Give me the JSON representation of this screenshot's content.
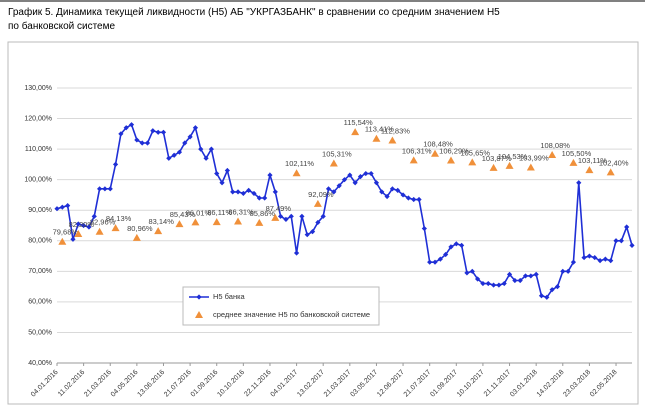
{
  "chart_data": {
    "type": "line",
    "title": "График 5. Динамика текущей ликвидности (Н5) АБ \"УКРГАЗБАНК\" в сравнении со средним значением Н5 по банковской системе",
    "categories": [
      "04.01.2016",
      null,
      null,
      null,
      null,
      "11.02.2016",
      null,
      null,
      null,
      null,
      "21.03.2016",
      null,
      null,
      null,
      null,
      "04.05.2016",
      null,
      null,
      null,
      null,
      "13.06.2016",
      null,
      null,
      null,
      null,
      "21.07.2016",
      null,
      null,
      null,
      null,
      "01.09.2016",
      null,
      null,
      null,
      null,
      "10.10.2016",
      null,
      null,
      null,
      null,
      "22.11.2016",
      null,
      null,
      null,
      null,
      "04.01.2017",
      null,
      null,
      null,
      null,
      "13.02.2017",
      null,
      null,
      null,
      null,
      "21.03.2017",
      null,
      null,
      null,
      null,
      "03.05.2017",
      null,
      null,
      null,
      null,
      "12.06.2017",
      null,
      null,
      null,
      null,
      "21.07.2017",
      null,
      null,
      null,
      null,
      "01.09.2017",
      null,
      null,
      null,
      null,
      "10.10.2017",
      null,
      null,
      null,
      null,
      "21.11.2017",
      null,
      null,
      null,
      null,
      "03.01.2018",
      null,
      null,
      null,
      null,
      "14.02.2018",
      null,
      null,
      null,
      null,
      "23.03.2018",
      null,
      null,
      null,
      null,
      "02.05.2018",
      null,
      null,
      null
    ],
    "series": [
      {
        "name": "Н5 банка",
        "color": "#1f2fd6",
        "marker": "diamond",
        "line": true,
        "values": [
          90.5,
          91,
          91.5,
          80.5,
          85.5,
          85,
          84.5,
          88,
          97,
          97,
          97,
          105,
          115,
          117,
          118,
          113,
          112,
          112,
          116,
          115.5,
          115.5,
          107,
          108,
          109,
          112,
          114,
          117,
          110,
          107,
          110,
          102,
          99,
          103,
          96,
          96,
          95.5,
          96.5,
          95.5,
          94,
          94,
          101.5,
          96,
          88,
          87,
          88,
          76,
          88,
          82,
          83,
          86,
          88,
          97,
          96,
          98,
          100,
          101.5,
          99,
          101,
          102,
          102,
          99,
          96,
          94.5,
          97,
          96.5,
          95,
          94,
          93.5,
          93.5,
          84,
          73,
          73,
          74,
          75.5,
          78,
          79,
          78.5,
          69.5,
          70,
          67.5,
          66,
          66,
          65.5,
          65.5,
          66,
          69,
          67,
          67,
          68.5,
          68.5,
          69,
          62,
          61.5,
          64,
          65,
          70,
          70,
          73,
          99,
          74.5,
          75,
          74.5,
          73.5,
          74,
          73.5,
          80,
          80,
          84.5,
          78.5
        ]
      },
      {
        "name": "среднее значение Н5 по банковской системе",
        "color": "#f0903a",
        "marker": "triangle",
        "line": false,
        "values": [
          null,
          79.68,
          null,
          null,
          82.2,
          null,
          null,
          null,
          82.96,
          null,
          null,
          84.13,
          null,
          null,
          null,
          80.96,
          null,
          null,
          null,
          83.14,
          null,
          null,
          null,
          85.43,
          null,
          null,
          86.01,
          null,
          null,
          null,
          86.11,
          null,
          null,
          null,
          86.31,
          null,
          null,
          null,
          85.86,
          null,
          null,
          87.49,
          null,
          null,
          null,
          102.11,
          null,
          null,
          null,
          92.09,
          null,
          null,
          105.31,
          null,
          null,
          null,
          115.54,
          null,
          null,
          null,
          113.41,
          null,
          null,
          112.83,
          null,
          null,
          null,
          106.31,
          null,
          null,
          null,
          108.48,
          null,
          null,
          106.29,
          null,
          null,
          null,
          105.65,
          null,
          null,
          null,
          103.87,
          null,
          null,
          104.53,
          null,
          null,
          null,
          103.99,
          null,
          null,
          null,
          108.08,
          null,
          null,
          null,
          105.5,
          null,
          null,
          103.11,
          null,
          null,
          null,
          102.4,
          null,
          null,
          null,
          null
        ],
        "value_labels": [
          null,
          "79,68%",
          null,
          null,
          "82,20%",
          null,
          null,
          null,
          "82,96%",
          null,
          null,
          "84,13%",
          null,
          null,
          null,
          "80,96%",
          null,
          null,
          null,
          "83,14%",
          null,
          null,
          null,
          "85,43%",
          null,
          null,
          "86,01%",
          null,
          null,
          null,
          "86,11%",
          null,
          null,
          null,
          "86,31%",
          null,
          null,
          null,
          "85,86%",
          null,
          null,
          "87,49%",
          null,
          null,
          null,
          "102,11%",
          null,
          null,
          null,
          "92,09%",
          null,
          null,
          "105,31%",
          null,
          null,
          null,
          "115,54%",
          null,
          null,
          null,
          "113,41%",
          null,
          null,
          "112,83%",
          null,
          null,
          null,
          "106,31%",
          null,
          null,
          null,
          "108,48%",
          null,
          null,
          "106,29%",
          null,
          null,
          null,
          "105,65%",
          null,
          null,
          null,
          "103,87%",
          null,
          null,
          "104,53%",
          null,
          null,
          null,
          "103,99%",
          null,
          null,
          null,
          "108,08%",
          null,
          null,
          null,
          "105,50%",
          null,
          null,
          "103,11%",
          null,
          null,
          null,
          "102,40%",
          null,
          null,
          null,
          null
        ]
      }
    ],
    "ylim": [
      40,
      130
    ],
    "yticks": [
      {
        "value": 40,
        "label": "40,00%"
      },
      {
        "value": 50,
        "label": "50,00%"
      },
      {
        "value": 60,
        "label": "60,00%"
      },
      {
        "value": 70,
        "label": "70,00%"
      },
      {
        "value": 80,
        "label": "80,00%"
      },
      {
        "value": 90,
        "label": "90,00%"
      },
      {
        "value": 100,
        "label": "100,00%"
      },
      {
        "value": 110,
        "label": "110,00%"
      },
      {
        "value": 120,
        "label": "120,00%"
      },
      {
        "value": 130,
        "label": "130,00%"
      }
    ],
    "grid": true,
    "legend": "center-left"
  }
}
